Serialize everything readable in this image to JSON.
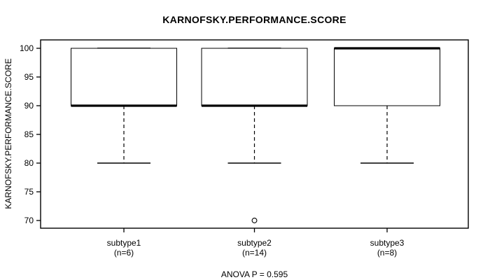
{
  "chart_data": {
    "type": "boxplot",
    "title": "KARNOFSKY.PERFORMANCE.SCORE",
    "ylabel": "KARNOFSKY.PERFORMANCE.SCORE",
    "xlabel": "",
    "ylim": [
      70,
      100
    ],
    "yticks": [
      70,
      75,
      80,
      85,
      90,
      95,
      100
    ],
    "grid": false,
    "annotation": "ANOVA P = 0.595",
    "line_color": "#000000",
    "box_fill": "#ffffff",
    "groups": [
      {
        "label": "subtype1",
        "n_label": "(n=6)",
        "whisker_low": 80,
        "q1": 90,
        "median": 90,
        "q3": 100,
        "whisker_high": 100,
        "outliers": []
      },
      {
        "label": "subtype2",
        "n_label": "(n=14)",
        "whisker_low": 80,
        "q1": 90,
        "median": 90,
        "q3": 100,
        "whisker_high": 100,
        "outliers": [
          70
        ]
      },
      {
        "label": "subtype3",
        "n_label": "(n=8)",
        "whisker_low": 80,
        "q1": 90,
        "median": 100,
        "q3": 100,
        "whisker_high": 100,
        "outliers": []
      }
    ]
  }
}
